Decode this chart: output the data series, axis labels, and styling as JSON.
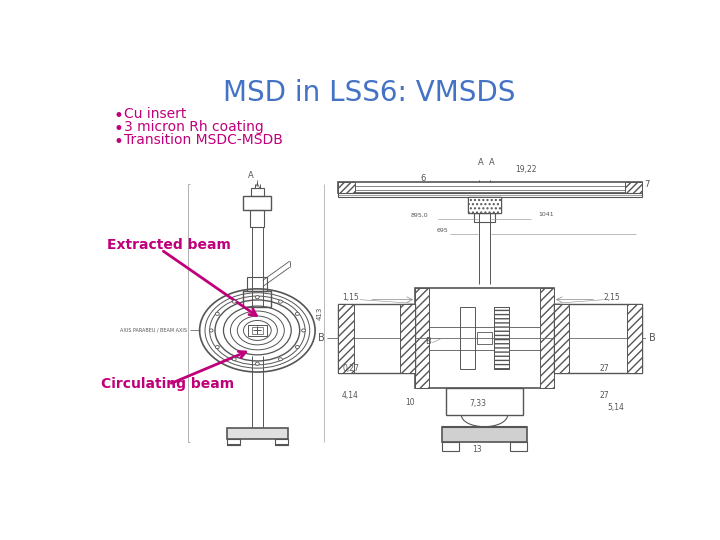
{
  "title": "MSD in LSS6: VMSDS",
  "title_color": "#4472C4",
  "title_fontsize": 20,
  "bullet_color": "#C0007A",
  "bullet_fontsize": 10,
  "bullets": [
    "Cu insert",
    "3 micron Rh coating",
    "Transition MSDC-MSDB"
  ],
  "label_color": "#C0007A",
  "label_fontsize": 10,
  "extracted_beam_label": "Extracted beam",
  "circulating_beam_label": "Circulating beam",
  "background_color": "#ffffff",
  "draw_color": "#555555",
  "draw_lw": 0.7
}
